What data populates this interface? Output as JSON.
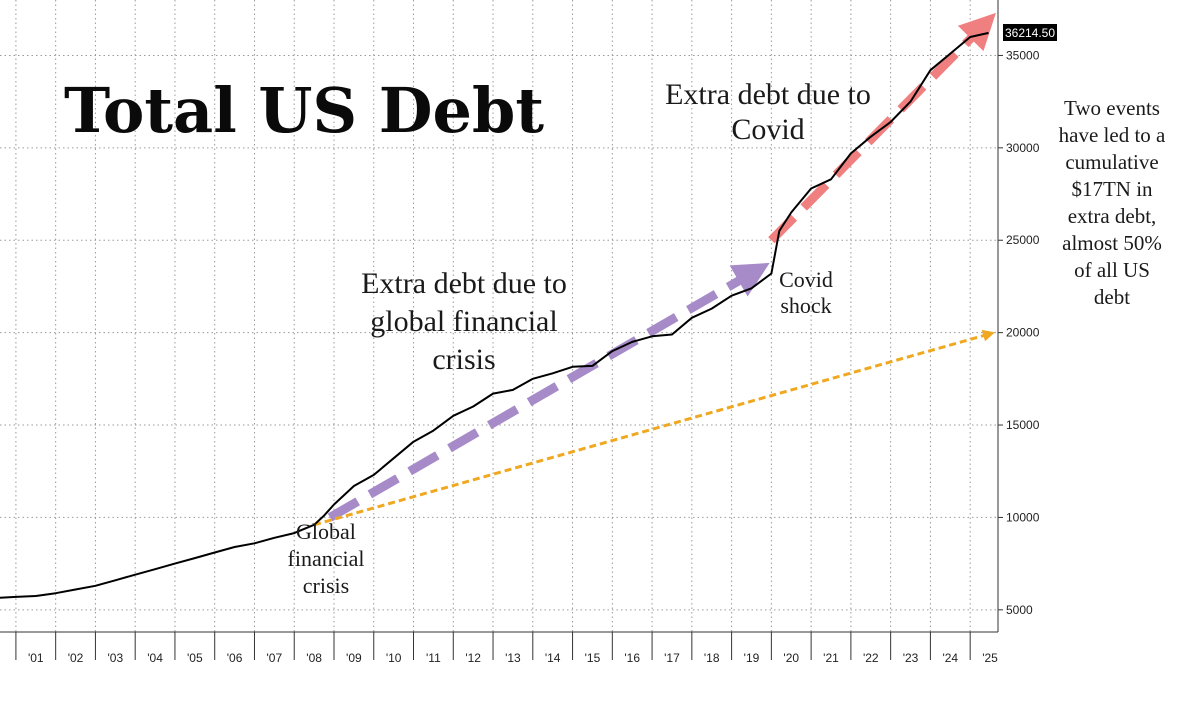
{
  "chart_data": {
    "type": "line",
    "title": "Total US Debt",
    "xlabel": "",
    "ylabel": "",
    "x_tick_labels": [
      "'01",
      "'02",
      "'03",
      "'04",
      "'05",
      "'06",
      "'07",
      "'08",
      "'09",
      "'10",
      "'11",
      "'12",
      "'13",
      "'14",
      "'15",
      "'16",
      "'17",
      "'18",
      "'19",
      "'20",
      "'21",
      "'22",
      "'23",
      "'24",
      "'25"
    ],
    "y_ticks": [
      5000,
      10000,
      15000,
      20000,
      25000,
      30000,
      35000
    ],
    "ylim": [
      3800,
      38000
    ],
    "xlim": [
      2000.6,
      2025.7
    ],
    "grid": true,
    "y_axis_side": "right",
    "last_value_label": "36214.50",
    "series": [
      {
        "color": "#000000",
        "x": [
          2000.6,
          2001.0,
          2001.5,
          2002.0,
          2002.5,
          2003.0,
          2003.5,
          2004.0,
          2004.5,
          2005.0,
          2005.5,
          2006.0,
          2006.5,
          2007.0,
          2007.5,
          2008.0,
          2008.5,
          2008.75,
          2009.0,
          2009.5,
          2010.0,
          2010.5,
          2011.0,
          2011.5,
          2012.0,
          2012.5,
          2013.0,
          2013.5,
          2014.0,
          2014.5,
          2015.0,
          2015.5,
          2016.0,
          2016.5,
          2017.0,
          2017.5,
          2018.0,
          2018.5,
          2019.0,
          2019.5,
          2019.75,
          2020.0,
          2020.2,
          2020.5,
          2021.0,
          2021.5,
          2022.0,
          2022.5,
          2023.0,
          2023.5,
          2024.0,
          2024.5,
          2025.0,
          2025.45
        ],
        "y": [
          5650,
          5700,
          5750,
          5900,
          6100,
          6300,
          6600,
          6900,
          7200,
          7500,
          7800,
          8100,
          8400,
          8600,
          8900,
          9150,
          9600,
          10100,
          10700,
          11700,
          12300,
          13200,
          14100,
          14700,
          15500,
          16000,
          16700,
          16900,
          17500,
          17800,
          18150,
          18200,
          19000,
          19500,
          19800,
          19900,
          20800,
          21300,
          22000,
          22400,
          22800,
          23200,
          25500,
          26500,
          27800,
          28300,
          29700,
          30600,
          31400,
          32500,
          34200,
          35100,
          36000,
          36214.5
        ]
      }
    ],
    "annotations": {
      "gfc_arrow_label": [
        "Extra debt due to",
        "global financial",
        "crisis"
      ],
      "covid_arrow_label": [
        "Extra debt due to",
        "Covid"
      ],
      "gfc_point_label": [
        "Global",
        "financial",
        "crisis"
      ],
      "covid_point_label": [
        "Covid",
        "shock"
      ],
      "side_note": [
        "Two events",
        "have led to a",
        "cumulative",
        "$17TN in",
        "extra debt,",
        "almost 50%",
        "of all US",
        "debt"
      ]
    },
    "arrows": [
      {
        "name": "gfc-arrow",
        "color": "#a78bc8",
        "x0": 2008.9,
        "y0": 10000,
        "x1": 2019.9,
        "y1": 23700
      },
      {
        "name": "covid-arrow",
        "color": "#f08080",
        "x0": 2020.0,
        "y0": 25000,
        "x1": 2025.6,
        "y1": 37200
      },
      {
        "name": "baseline-trend-arrow",
        "color": "#f0a820",
        "x0": 2008.5,
        "y0": 9600,
        "x1": 2025.6,
        "y1": 20000
      }
    ]
  }
}
